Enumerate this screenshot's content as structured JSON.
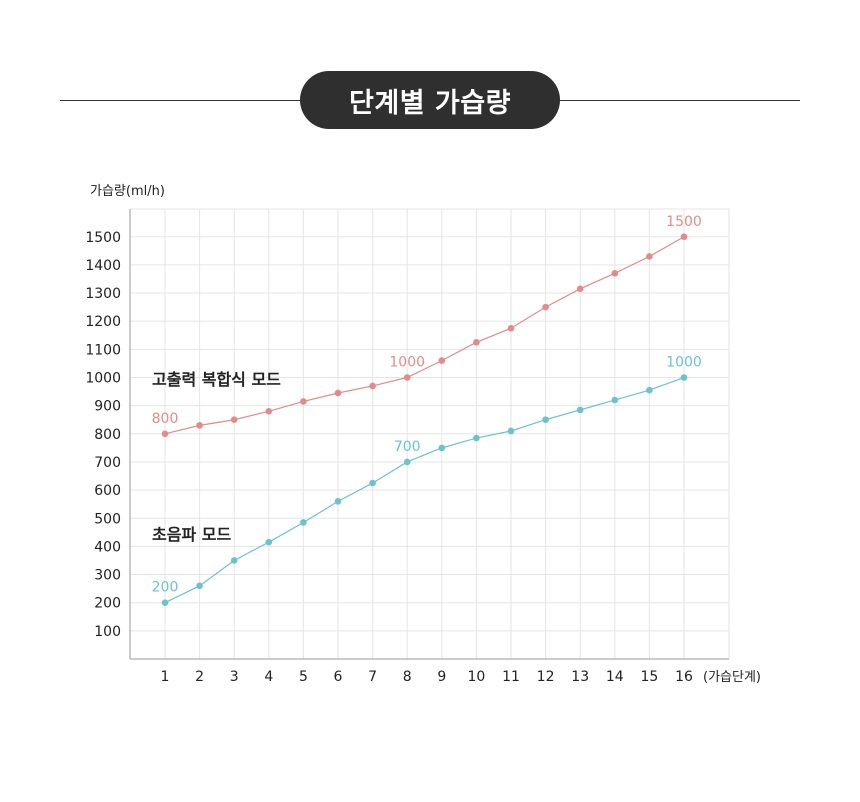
{
  "header": {
    "title": "단계별 가습량"
  },
  "colors": {
    "high_power": "#e58a8a",
    "ultrasonic": "#6cc3cc",
    "pill": "#2f2f2f"
  },
  "chart_data": {
    "type": "line",
    "ylabel": "가습량(ml/h)",
    "xlabel": "(가습단계)",
    "x": [
      1,
      2,
      3,
      4,
      5,
      6,
      7,
      8,
      9,
      10,
      11,
      12,
      13,
      14,
      15,
      16
    ],
    "y_ticks": [
      100,
      200,
      300,
      400,
      500,
      600,
      700,
      800,
      900,
      1000,
      1100,
      1200,
      1300,
      1400,
      1500
    ],
    "ylim": [
      0,
      1550
    ],
    "grid": true,
    "series": [
      {
        "name": "고출력 복합식 모드",
        "color": "#e58a8a",
        "values": [
          800,
          830,
          850,
          880,
          915,
          945,
          970,
          1000,
          1060,
          1125,
          1175,
          1250,
          1315,
          1370,
          1430,
          1500
        ],
        "value_labels": [
          {
            "index": 0,
            "text": "800"
          },
          {
            "index": 7,
            "text": "1000"
          },
          {
            "index": 15,
            "text": "1500"
          }
        ]
      },
      {
        "name": "초음파 모드",
        "color": "#6cc3cc",
        "values": [
          200,
          260,
          350,
          415,
          485,
          560,
          625,
          700,
          750,
          785,
          810,
          850,
          885,
          920,
          955,
          1000
        ],
        "value_labels": [
          {
            "index": 0,
            "text": "200"
          },
          {
            "index": 7,
            "text": "700"
          },
          {
            "index": 15,
            "text": "1000"
          }
        ]
      }
    ]
  }
}
